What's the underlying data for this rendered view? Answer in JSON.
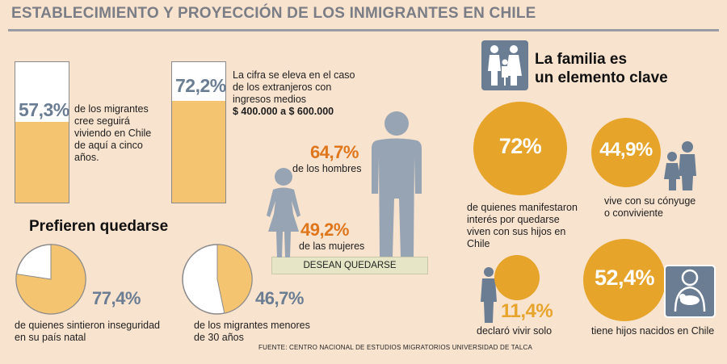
{
  "title": "ESTABLECIMIENTO Y PROYECCIÓN DE LOS INMIGRANTES EN CHILE",
  "stay_five_years": {
    "value_label": "57,3%",
    "value": 57.3,
    "text": [
      "de los migrantes",
      "cree seguirá",
      "viviendo en Chile",
      "de aquí a cinco",
      "años."
    ]
  },
  "income": {
    "value_label": "72,2%",
    "value": 72.2,
    "text": [
      "La cifra se eleva en el caso",
      "de los extranjeros con",
      "ingresos medios"
    ],
    "range": "$ 400.000 a $ 600.000"
  },
  "gender": {
    "men_label": "64,7%",
    "men_value": 64.7,
    "men_text": "de los hombres",
    "women_label": "49,2%",
    "women_value": 49.2,
    "women_text": "de las mujeres",
    "footer": "DESEAN QUEDARSE"
  },
  "prefer_stay": {
    "heading": "Prefieren quedarse",
    "insecurity_label": "77,4%",
    "insecurity_text": [
      "de quienes sintieron inseguridad",
      "en su país natal"
    ],
    "young_label": "46,7%",
    "young_text": [
      "de los migrantes menores",
      "de 30 años"
    ]
  },
  "family": {
    "heading": [
      "La familia es",
      "un elemento clave"
    ],
    "with_children_label": "72%",
    "with_children_text": [
      "de quienes manifestaron",
      "interés por quedarse",
      "viven con sus hijos en",
      "Chile"
    ],
    "spouse_label": "44,9%",
    "spouse_text": [
      "vive con su cónyuge",
      "o conviviente"
    ],
    "alone_label": "11,4%",
    "alone_text": "declaró vivir solo",
    "kids_chile_label": "52,4%",
    "kids_chile_text": "tiene hijos nacidos en Chile"
  },
  "source": "FUENTE: CENTRO NACIONAL DE ESTUDIOS MIGRATORIOS UNIVERSIDAD DE TALCA",
  "colors": {
    "background": "#f8e3cf",
    "orange": "#e6a42a",
    "light_orange": "#f4c470",
    "slate": "#6b7d92",
    "silhouette": "#97a4b4",
    "accent": "#e0761c"
  },
  "chart_data": [
    {
      "type": "bar",
      "categories": [
        "cree seguirá viviendo en Chile"
      ],
      "values": [
        57.3
      ],
      "ylim": [
        0,
        100
      ]
    },
    {
      "type": "bar",
      "categories": [
        "ingresos medios $ 400.000 a $ 600.000"
      ],
      "values": [
        72.2
      ],
      "ylim": [
        0,
        100
      ]
    },
    {
      "type": "pie",
      "categories": [
        "sintieron inseguridad",
        "resto"
      ],
      "values": [
        77.4,
        22.6
      ]
    },
    {
      "type": "pie",
      "categories": [
        "menores de 30 años",
        "resto"
      ],
      "values": [
        46.7,
        53.3
      ]
    },
    {
      "type": "bar",
      "categories": [
        "hombres",
        "mujeres"
      ],
      "values": [
        64.7,
        49.2
      ]
    },
    {
      "type": "bubble",
      "categories": [
        "viven con sus hijos",
        "cónyuge o conviviente",
        "vivir solo",
        "hijos nacidos en Chile"
      ],
      "values": [
        72,
        44.9,
        11.4,
        52.4
      ]
    }
  ]
}
